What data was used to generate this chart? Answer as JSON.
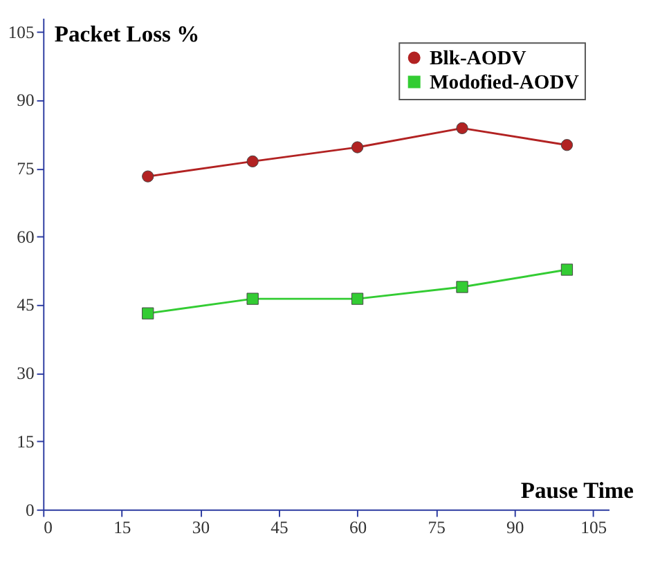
{
  "chart_data": {
    "type": "line",
    "xlabel": "Pause Time",
    "ylabel": "Packet Loss %",
    "x": [
      20,
      40,
      60,
      80,
      100
    ],
    "series": [
      {
        "name": "Blk-AODV",
        "color": "#b22222",
        "marker": "circle",
        "values": [
          73.2,
          76.5,
          79.6,
          83.8,
          80.1
        ]
      },
      {
        "name": "Modofied-AODV",
        "color": "#33cc33",
        "marker": "square",
        "values": [
          43.1,
          46.3,
          46.3,
          48.9,
          52.7
        ]
      }
    ],
    "xlim": [
      0,
      108
    ],
    "xticks": [
      0,
      15,
      30,
      45,
      60,
      75,
      90,
      105
    ],
    "ylim": [
      0,
      108
    ],
    "yticks": [
      0,
      15,
      30,
      45,
      60,
      75,
      90,
      105
    ],
    "grid": false,
    "legend": "top right",
    "line_style": "solid"
  }
}
